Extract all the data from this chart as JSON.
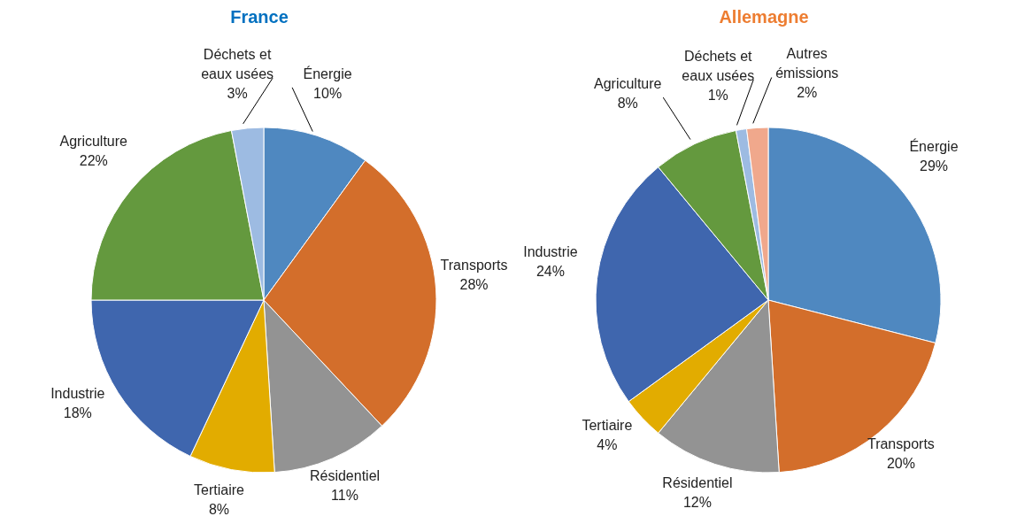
{
  "chart_data": [
    {
      "type": "pie",
      "title": "France",
      "categories": [
        "Énergie",
        "Transports",
        "Résidentiel",
        "Tertiaire",
        "Industrie",
        "Agriculture",
        "Déchets et eaux usées"
      ],
      "values": [
        10,
        28,
        11,
        8,
        18,
        22,
        3
      ],
      "value_labels": [
        "10%",
        "28%",
        "11%",
        "8%",
        "18%",
        "22%",
        "3%"
      ],
      "colors": [
        "#4f88c0",
        "#d36e2b",
        "#939393",
        "#e2ac00",
        "#3f66ae",
        "#64993e",
        "#9dbbe2"
      ]
    },
    {
      "type": "pie",
      "title": "Allemagne",
      "categories": [
        "Énergie",
        "Transports",
        "Résidentiel",
        "Tertiaire",
        "Industrie",
        "Agriculture",
        "Déchets et eaux usées",
        "Autres émissions"
      ],
      "values": [
        29,
        20,
        12,
        4,
        24,
        8,
        1,
        2
      ],
      "value_labels": [
        "29%",
        "20%",
        "12%",
        "4%",
        "24%",
        "8%",
        "1%",
        "2%"
      ],
      "colors": [
        "#4f88c0",
        "#d36e2b",
        "#939393",
        "#e2ac00",
        "#3f66ae",
        "#64993e",
        "#9dbbe2",
        "#f0a88c"
      ]
    }
  ]
}
